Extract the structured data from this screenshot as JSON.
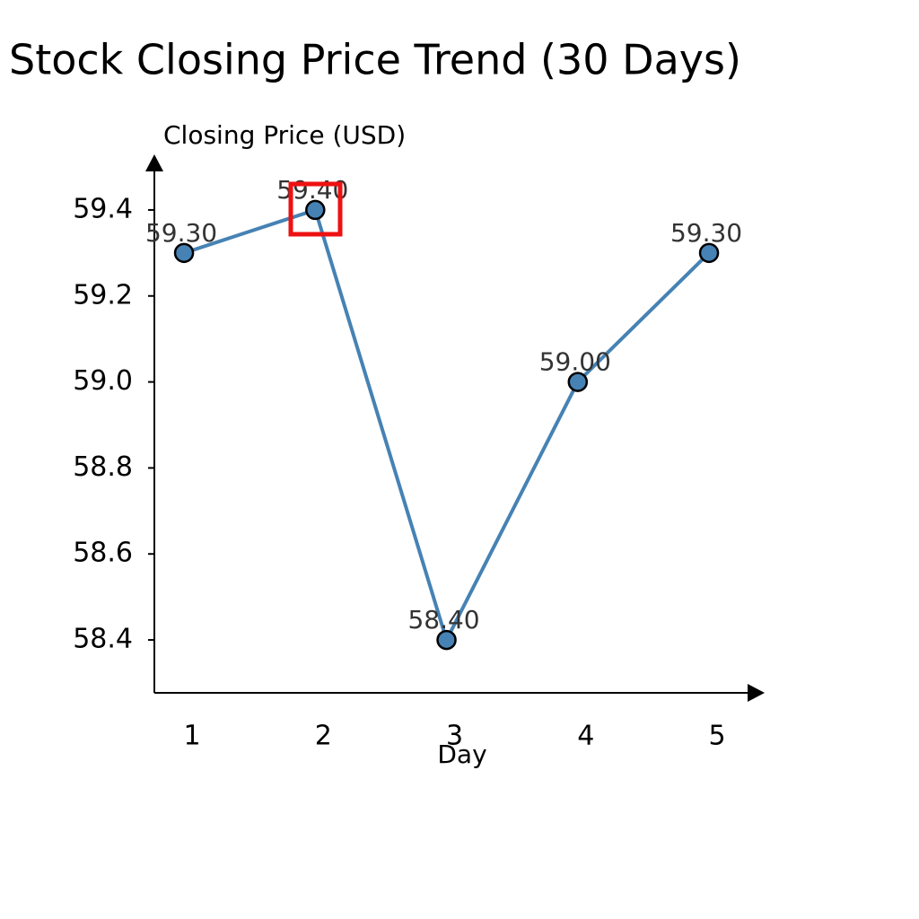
{
  "chart_data": {
    "type": "line",
    "title": "Stock Closing Price Trend (30 Days)",
    "x_label": "Day",
    "y_label": "Closing Price (USD)",
    "x": [
      1,
      2,
      3,
      4,
      5
    ],
    "series": [
      {
        "color": "#4682b4",
        "values": [
          59.3,
          59.4,
          58.4,
          59.0,
          59.3
        ],
        "value_labels": [
          "59.30",
          "59.40",
          "58.40",
          "59.00",
          "59.30"
        ]
      }
    ],
    "xlim": [
      0.774,
      5.41
    ],
    "xticks": [
      1,
      2,
      3,
      4,
      5
    ],
    "ylim": [
      58.277,
      59.523
    ],
    "yticks": [
      58.4,
      58.6,
      58.8,
      {
        "value": 59.0,
        "label": "59.0"
      },
      59.2,
      59.4
    ]
  }
}
